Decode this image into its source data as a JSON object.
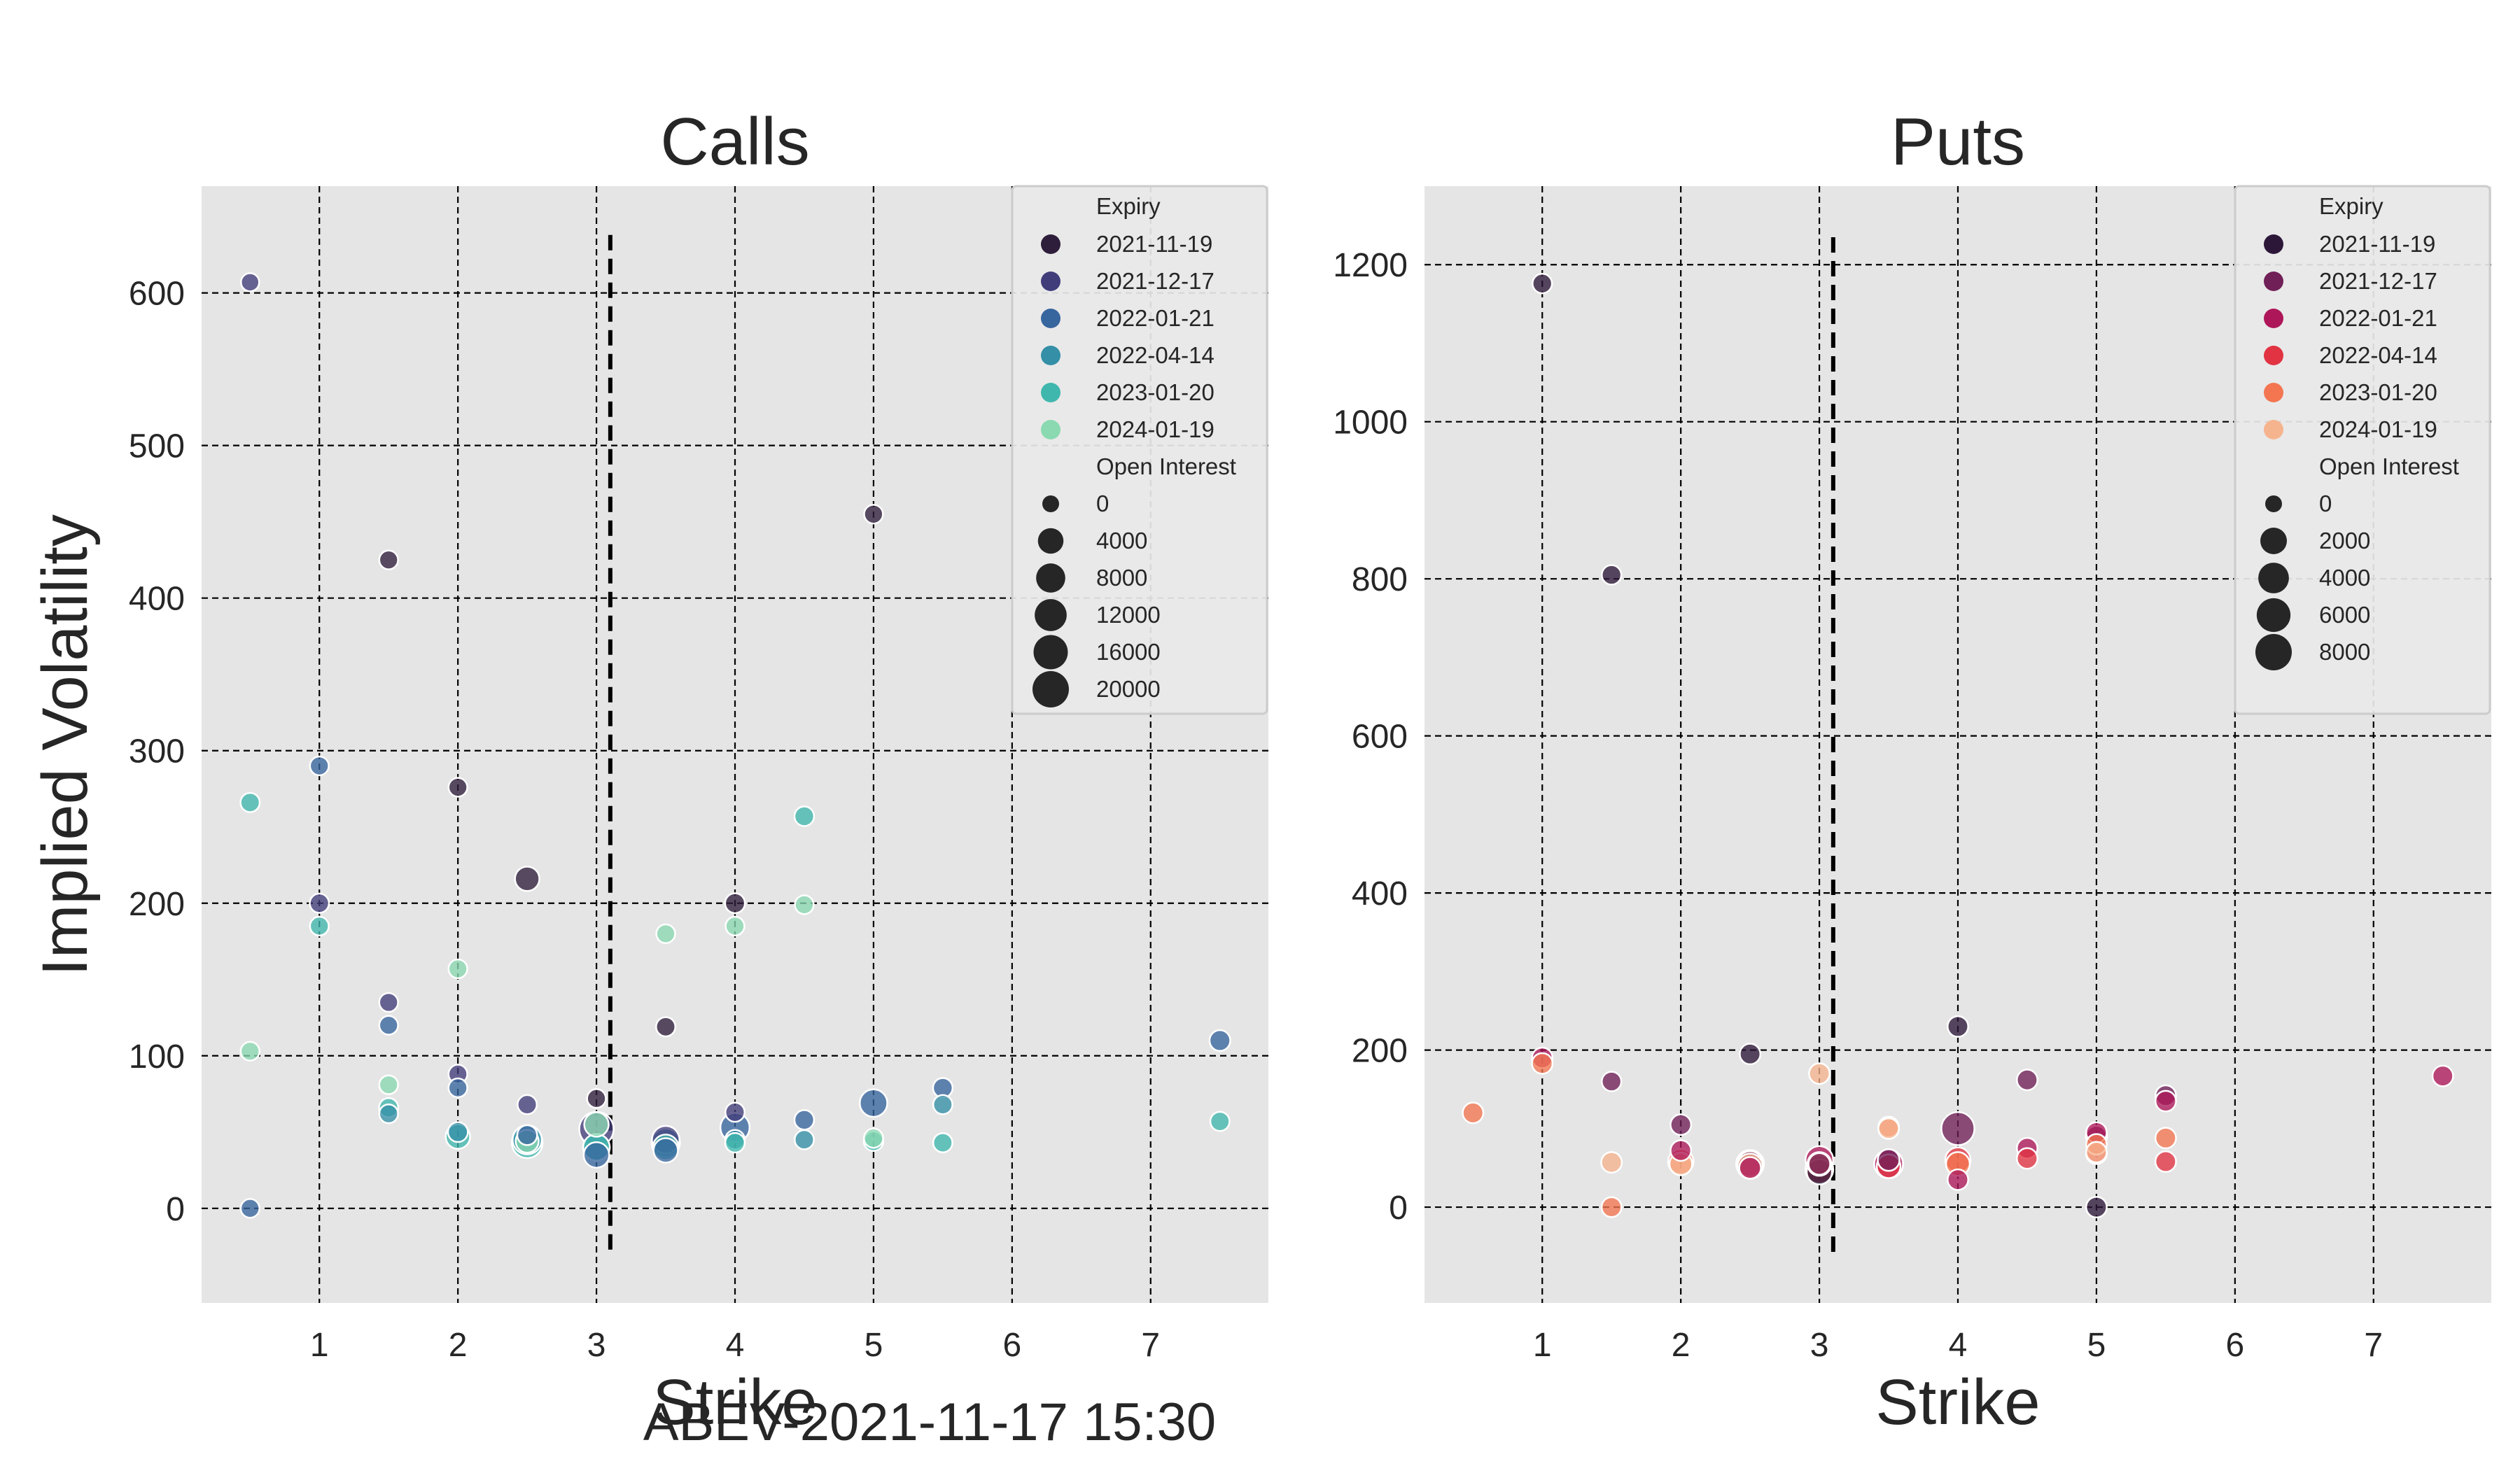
{
  "figure": {
    "suptitle": "ABEV-2021-11-17 15:30",
    "ylabel": "Implied Volatility"
  },
  "chart_data": [
    {
      "type": "scatter",
      "title": "Calls",
      "xlabel": "Strike",
      "ylabel": "Implied Volatility",
      "xlim": [
        0.15,
        7.85
      ],
      "ylim": [
        -62,
        670
      ],
      "x_ticks": [
        1,
        2,
        3,
        4,
        5,
        6,
        7
      ],
      "y_ticks": [
        0,
        100,
        200,
        300,
        400,
        500,
        600
      ],
      "vline": {
        "x": 3.1,
        "y_range": [
          -30,
          638
        ]
      },
      "grid": true,
      "legend": {
        "position": "top-right",
        "hue_title": "Expiry",
        "size_title": "Open Interest",
        "size_entries": [
          "0",
          "4000",
          "8000",
          "12000",
          "16000",
          "20000"
        ],
        "size_max": 20000
      },
      "series": [
        {
          "name": "2021-11-19",
          "color": "#2e1e3b",
          "points": [
            [
              1.5,
              425,
              200
            ],
            [
              2,
              276,
              200
            ],
            [
              2.5,
              216,
              3000
            ],
            [
              3,
              72,
              200
            ],
            [
              3.5,
              119,
              300
            ],
            [
              4,
              200,
              500
            ],
            [
              5,
              455,
              200
            ]
          ]
        },
        {
          "name": "2021-12-17",
          "color": "#413d7b",
          "points": [
            [
              0.5,
              607,
              100
            ],
            [
              1,
              200,
              300
            ],
            [
              1.5,
              135,
              200
            ],
            [
              2,
              88,
              200
            ],
            [
              2.5,
              68,
              300
            ],
            [
              3,
              52,
              16000
            ],
            [
              3.5,
              45,
              6000
            ],
            [
              4,
              63,
              300
            ]
          ]
        },
        {
          "name": "2022-01-21",
          "color": "#37659e",
          "points": [
            [
              0.5,
              0,
              200
            ],
            [
              1,
              290,
              200
            ],
            [
              1.5,
              120,
              200
            ],
            [
              2,
              79,
              200
            ],
            [
              2.5,
              48,
              500
            ],
            [
              3,
              35,
              4000
            ],
            [
              3.5,
              38,
              3000
            ],
            [
              4,
              53,
              8000
            ],
            [
              4.5,
              58,
              400
            ],
            [
              5,
              69,
              6000
            ],
            [
              5.5,
              79,
              400
            ],
            [
              7.5,
              110,
              800
            ]
          ]
        },
        {
          "name": "2022-04-14",
          "color": "#348fa7",
          "points": [
            [
              1.5,
              62,
              200
            ],
            [
              2,
              50,
              500
            ],
            [
              2.5,
              45,
              8000
            ],
            [
              3,
              40,
              5000
            ],
            [
              3.5,
              43,
              7000
            ],
            [
              4,
              45,
              400
            ],
            [
              4.5,
              45,
              300
            ],
            [
              5.5,
              68,
              300
            ]
          ]
        },
        {
          "name": "2023-01-20",
          "color": "#40b7ad",
          "points": [
            [
              0.5,
              266,
              300
            ],
            [
              1,
              185,
              200
            ],
            [
              1.5,
              66,
              300
            ],
            [
              2,
              47,
              3000
            ],
            [
              2.5,
              43,
              10000
            ],
            [
              3,
              40,
              5000
            ],
            [
              3.5,
              40,
              4000
            ],
            [
              4,
              43,
              400
            ],
            [
              4.5,
              257,
              400
            ],
            [
              5,
              44,
              400
            ],
            [
              5.5,
              43,
              300
            ],
            [
              7.5,
              57,
              300
            ]
          ]
        },
        {
          "name": "2024-01-19",
          "color": "#8ad9b1",
          "points": [
            [
              0.5,
              103,
              200
            ],
            [
              1.5,
              81,
              200
            ],
            [
              2,
              157,
              200
            ],
            [
              2.5,
              44,
              2000
            ],
            [
              3,
              55,
              3000
            ],
            [
              3.5,
              180,
              200
            ],
            [
              4,
              185,
              200
            ],
            [
              4.5,
              199,
              200
            ],
            [
              5,
              46,
              300
            ]
          ]
        }
      ]
    },
    {
      "type": "scatter",
      "title": "Puts",
      "xlabel": "Strike",
      "xlim": [
        0.15,
        7.85
      ],
      "ylim": [
        -122,
        1300
      ],
      "x_ticks": [
        1,
        2,
        3,
        4,
        5,
        6,
        7
      ],
      "y_ticks": [
        0,
        200,
        400,
        600,
        800,
        1000,
        1200
      ],
      "vline": {
        "x": 3.1,
        "y_range": [
          -60,
          1235
        ]
      },
      "grid": true,
      "legend": {
        "position": "top-right",
        "hue_title": "Expiry",
        "size_title": "Open Interest",
        "size_entries": [
          "0",
          "2000",
          "4000",
          "6000",
          "8000"
        ],
        "size_max": 8000
      },
      "series": [
        {
          "name": "2021-11-19",
          "color": "#2d1739",
          "points": [
            [
              1,
              1176,
              150
            ],
            [
              1.5,
              805,
              150
            ],
            [
              2.5,
              195,
              300
            ],
            [
              3,
              45,
              1500
            ],
            [
              4,
              230,
              300
            ],
            [
              5,
              0,
              300
            ]
          ]
        },
        {
          "name": "2021-12-17",
          "color": "#701f57",
          "points": [
            [
              1.5,
              160,
              150
            ],
            [
              2,
              105,
              300
            ],
            [
              2.5,
              55,
              1500
            ],
            [
              3,
              55,
              500
            ],
            [
              3.5,
              60,
              500
            ],
            [
              4,
              100,
              5500
            ],
            [
              4.5,
              162,
              300
            ],
            [
              5,
              90,
              400
            ],
            [
              5.5,
              142,
              300
            ]
          ]
        },
        {
          "name": "2022-01-21",
          "color": "#ad1759",
          "points": [
            [
              1,
              190,
              300
            ],
            [
              2,
              72,
              300
            ],
            [
              2.5,
              50,
              500
            ],
            [
              3,
              60,
              2500
            ],
            [
              3.5,
              55,
              3000
            ],
            [
              4,
              35,
              300
            ],
            [
              4.5,
              75,
              300
            ],
            [
              5,
              95,
              300
            ],
            [
              5.5,
              135,
              300
            ],
            [
              7.5,
              167,
              300
            ]
          ]
        },
        {
          "name": "2022-04-14",
          "color": "#e13342",
          "points": [
            [
              3,
              48,
              2500
            ],
            [
              3.5,
              52,
              1000
            ],
            [
              4,
              60,
              1500
            ],
            [
              4.5,
              62,
              300
            ],
            [
              5,
              68,
              300
            ],
            [
              5.5,
              58,
              300
            ]
          ]
        },
        {
          "name": "2023-01-20",
          "color": "#f37651",
          "points": [
            [
              0.5,
              120,
              300
            ],
            [
              1,
              183,
              300
            ],
            [
              1.5,
              0,
              200
            ],
            [
              2,
              58,
              1500
            ],
            [
              2.5,
              55,
              2500
            ],
            [
              3,
              55,
              1000
            ],
            [
              3.5,
              102,
              300
            ],
            [
              4,
              55,
              1000
            ],
            [
              5,
              80,
              300
            ],
            [
              5.5,
              88,
              300
            ]
          ]
        },
        {
          "name": "2024-01-19",
          "color": "#f6b48e",
          "points": [
            [
              1.5,
              57,
              300
            ],
            [
              2,
              55,
              700
            ],
            [
              2.5,
              52,
              1500
            ],
            [
              3,
              170,
              300
            ],
            [
              3.5,
              100,
              300
            ],
            [
              5,
              70,
              300
            ]
          ]
        }
      ]
    }
  ]
}
